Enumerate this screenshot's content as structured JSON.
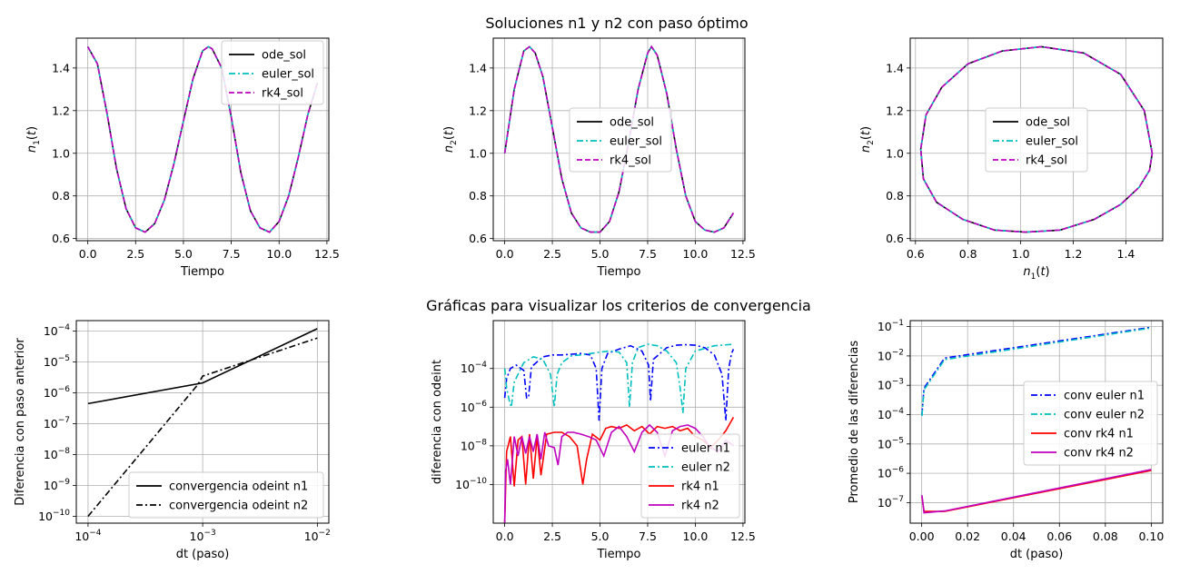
{
  "titles": {
    "top": "Soluciones n1 y n2 con paso óptimo",
    "bottom": "Gráficas para visualizar los criterios de convergencia"
  },
  "chart_data": [
    {
      "type": "line",
      "xlabel": "Tiempo",
      "ylabel": "n1(t)",
      "xlim": [
        -0.6,
        12.6
      ],
      "ylim": [
        0.59,
        1.54
      ],
      "xticks": [
        0,
        2.5,
        5,
        7.5,
        10,
        12.5
      ],
      "xtick_labels": [
        "0.0",
        "2.5",
        "5.0",
        "7.5",
        "10.0",
        "12.5"
      ],
      "yticks": [
        0.6,
        0.8,
        1.0,
        1.2,
        1.4
      ],
      "ytick_labels": [
        "0.6",
        "0.8",
        "1.0",
        "1.2",
        "1.4"
      ],
      "grid": true,
      "legend_position": "upper right",
      "x": [
        0,
        0.5,
        1,
        1.5,
        2,
        2.5,
        3,
        3.5,
        4,
        4.5,
        5,
        5.5,
        6,
        6.3,
        6.5,
        7,
        7.5,
        8,
        8.5,
        9,
        9.5,
        10,
        10.5,
        11,
        11.5,
        12
      ],
      "series": [
        {
          "name": "ode_sol",
          "color": "#000000",
          "dash": "solid",
          "values": [
            1.5,
            1.42,
            1.19,
            0.93,
            0.74,
            0.65,
            0.63,
            0.67,
            0.78,
            0.95,
            1.15,
            1.35,
            1.48,
            1.5,
            1.49,
            1.4,
            1.17,
            0.91,
            0.73,
            0.65,
            0.63,
            0.68,
            0.8,
            0.98,
            1.18,
            1.33
          ]
        },
        {
          "name": "euler_sol",
          "color": "#00bfbf",
          "dash": "dashdot",
          "values": [
            1.5,
            1.42,
            1.19,
            0.93,
            0.74,
            0.65,
            0.63,
            0.67,
            0.78,
            0.95,
            1.15,
            1.35,
            1.48,
            1.5,
            1.49,
            1.4,
            1.17,
            0.91,
            0.73,
            0.65,
            0.63,
            0.68,
            0.8,
            0.98,
            1.18,
            1.33
          ]
        },
        {
          "name": "rk4_sol",
          "color": "#bf00bf",
          "dash": "dashed",
          "values": [
            1.5,
            1.42,
            1.19,
            0.93,
            0.74,
            0.65,
            0.63,
            0.67,
            0.78,
            0.95,
            1.15,
            1.35,
            1.48,
            1.5,
            1.49,
            1.4,
            1.17,
            0.91,
            0.73,
            0.65,
            0.63,
            0.68,
            0.8,
            0.98,
            1.18,
            1.33
          ]
        }
      ]
    },
    {
      "type": "line",
      "xlabel": "Tiempo",
      "ylabel": "n2(t)",
      "xlim": [
        -0.6,
        12.6
      ],
      "ylim": [
        0.59,
        1.54
      ],
      "xticks": [
        0,
        2.5,
        5,
        7.5,
        10,
        12.5
      ],
      "xtick_labels": [
        "0.0",
        "2.5",
        "5.0",
        "7.5",
        "10.0",
        "12.5"
      ],
      "yticks": [
        0.6,
        0.8,
        1.0,
        1.2,
        1.4
      ],
      "ytick_labels": [
        "0.6",
        "0.8",
        "1.0",
        "1.2",
        "1.4"
      ],
      "grid": true,
      "legend_position": "center",
      "x": [
        0,
        0.5,
        1,
        1.3,
        1.6,
        2,
        2.5,
        3,
        3.5,
        4,
        4.5,
        5,
        5.5,
        6,
        6.5,
        7,
        7.5,
        7.7,
        8,
        8.5,
        9,
        9.5,
        10,
        10.5,
        11,
        11.5,
        12
      ],
      "series": [
        {
          "name": "ode_sol",
          "color": "#000000",
          "dash": "solid",
          "values": [
            1.0,
            1.3,
            1.48,
            1.5,
            1.47,
            1.36,
            1.12,
            0.88,
            0.72,
            0.65,
            0.63,
            0.63,
            0.68,
            0.82,
            1.05,
            1.3,
            1.47,
            1.5,
            1.46,
            1.28,
            1.02,
            0.8,
            0.68,
            0.64,
            0.63,
            0.65,
            0.72
          ]
        },
        {
          "name": "euler_sol",
          "color": "#00bfbf",
          "dash": "dashdot",
          "values": [
            1.0,
            1.3,
            1.48,
            1.5,
            1.47,
            1.36,
            1.12,
            0.88,
            0.72,
            0.65,
            0.63,
            0.63,
            0.68,
            0.82,
            1.05,
            1.3,
            1.47,
            1.5,
            1.46,
            1.28,
            1.02,
            0.8,
            0.68,
            0.64,
            0.63,
            0.65,
            0.72
          ]
        },
        {
          "name": "rk4_sol",
          "color": "#bf00bf",
          "dash": "dashed",
          "values": [
            1.0,
            1.3,
            1.48,
            1.5,
            1.47,
            1.36,
            1.12,
            0.88,
            0.72,
            0.65,
            0.63,
            0.63,
            0.68,
            0.82,
            1.05,
            1.3,
            1.47,
            1.5,
            1.46,
            1.28,
            1.02,
            0.8,
            0.68,
            0.64,
            0.63,
            0.65,
            0.72
          ]
        }
      ]
    },
    {
      "type": "line",
      "xlabel": "n1(t)",
      "ylabel": "n2(t)",
      "xlim": [
        0.58,
        1.54
      ],
      "ylim": [
        0.59,
        1.54
      ],
      "xticks": [
        0.6,
        0.8,
        1.0,
        1.2,
        1.4
      ],
      "xtick_labels": [
        "0.6",
        "0.8",
        "1.0",
        "1.2",
        "1.4"
      ],
      "yticks": [
        0.6,
        0.8,
        1.0,
        1.2,
        1.4
      ],
      "ytick_labels": [
        "0.6",
        "0.8",
        "1.0",
        "1.2",
        "1.4"
      ],
      "grid": true,
      "legend_position": "center",
      "x": [
        1.5,
        1.47,
        1.38,
        1.24,
        1.08,
        0.93,
        0.8,
        0.7,
        0.64,
        0.62,
        0.63,
        0.68,
        0.78,
        0.9,
        1.02,
        1.15,
        1.28,
        1.38,
        1.45,
        1.49,
        1.5
      ],
      "series": [
        {
          "name": "ode_sol",
          "color": "#000000",
          "dash": "solid",
          "values": [
            1.0,
            1.2,
            1.37,
            1.47,
            1.5,
            1.48,
            1.42,
            1.31,
            1.18,
            1.02,
            0.88,
            0.77,
            0.69,
            0.64,
            0.63,
            0.64,
            0.69,
            0.76,
            0.84,
            0.92,
            1.0
          ]
        },
        {
          "name": "euler_sol",
          "color": "#00bfbf",
          "dash": "dashdot",
          "values": [
            1.0,
            1.2,
            1.37,
            1.47,
            1.5,
            1.48,
            1.42,
            1.31,
            1.18,
            1.02,
            0.88,
            0.77,
            0.69,
            0.64,
            0.63,
            0.64,
            0.69,
            0.76,
            0.84,
            0.92,
            1.0
          ]
        },
        {
          "name": "rk4_sol",
          "color": "#bf00bf",
          "dash": "dashed",
          "values": [
            1.0,
            1.2,
            1.37,
            1.47,
            1.5,
            1.48,
            1.42,
            1.31,
            1.18,
            1.02,
            0.88,
            0.77,
            0.69,
            0.64,
            0.63,
            0.64,
            0.69,
            0.76,
            0.84,
            0.92,
            1.0
          ]
        }
      ]
    },
    {
      "type": "line",
      "xlabel": "dt (paso)",
      "ylabel": "Diferencia con paso anterior",
      "xscale": "log",
      "yscale": "log",
      "xlim": [
        7.9e-05,
        0.0126
      ],
      "ylim": [
        6e-11,
        0.00022
      ],
      "xticks": [
        0.0001,
        0.001,
        0.01
      ],
      "xtick_labels": [
        "10^-4",
        "10^-3",
        "10^-2"
      ],
      "yticks": [
        1e-10,
        1e-09,
        1e-08,
        1e-07,
        1e-06,
        1e-05,
        0.0001
      ],
      "ytick_labels": [
        "10^-10",
        "10^-9",
        "10^-8",
        "10^-7",
        "10^-6",
        "10^-5",
        "10^-4"
      ],
      "grid": true,
      "legend_position": "lower right",
      "series": [
        {
          "name": "convergencia odeint n1",
          "color": "#000000",
          "dash": "solid",
          "x": [
            0.0001,
            0.001,
            0.01
          ],
          "values": [
            4.5e-07,
            2.1e-06,
            0.00012
          ]
        },
        {
          "name": "convergencia odeint n2",
          "color": "#000000",
          "dash": "dashdot",
          "x": [
            0.0001,
            0.0009,
            0.001,
            0.01
          ],
          "values": [
            1e-10,
            1.8e-06,
            3.5e-06,
            6e-05
          ]
        }
      ]
    },
    {
      "type": "line",
      "xlabel": "Tiempo",
      "ylabel": "diferencia con odeint",
      "yscale": "log",
      "xlim": [
        -0.6,
        12.6
      ],
      "ylim": [
        1e-12,
        0.03
      ],
      "xticks": [
        0,
        2.5,
        5,
        7.5,
        10,
        12.5
      ],
      "xtick_labels": [
        "0.0",
        "2.5",
        "5.0",
        "7.5",
        "10.0",
        "12.5"
      ],
      "yticks": [
        1e-10,
        1e-08,
        1e-06,
        0.0001
      ],
      "ytick_labels": [
        "10^-10",
        "10^-8",
        "10^-6",
        "10^-4"
      ],
      "grid": true,
      "legend_position": "lower right",
      "series": [
        {
          "name": "euler n1",
          "color": "#0000ff",
          "dash": "dashdot",
          "x": [
            0,
            0.1,
            0.3,
            0.6,
            1.0,
            1.15,
            1.25,
            1.4,
            2.0,
            2.5,
            3.0,
            3.5,
            4.0,
            4.5,
            4.8,
            4.95,
            5.1,
            5.4,
            6.0,
            6.6,
            7.2,
            7.55,
            7.65,
            7.8,
            8.5,
            9.0,
            9.5,
            10.0,
            10.5,
            11.0,
            11.4,
            11.6,
            11.75,
            11.9,
            12.0
          ],
          "values": [
            3e-06,
            3e-05,
            0.0001,
            0.00015,
            8e-05,
            3e-06,
            3e-06,
            0.00012,
            0.0004,
            0.0005,
            0.0005,
            0.00055,
            0.0006,
            0.0005,
            0.0001,
            2e-07,
            0.0001,
            0.0006,
            0.001,
            0.0015,
            0.0008,
            0.00015,
            2e-06,
            0.0003,
            0.0012,
            0.0016,
            0.0017,
            0.0016,
            0.0012,
            0.0005,
            5e-05,
            2e-07,
            0.0001,
            0.0006,
            0.001
          ]
        },
        {
          "name": "euler n2",
          "color": "#00bfbf",
          "dash": "dashdot",
          "x": [
            0,
            0.1,
            0.25,
            0.35,
            0.5,
            1.0,
            1.5,
            2.0,
            2.4,
            2.6,
            2.75,
            3.0,
            3.5,
            4.0,
            5.0,
            5.5,
            6.0,
            6.4,
            6.55,
            6.7,
            7.0,
            7.5,
            8.0,
            8.5,
            9.0,
            9.2,
            9.35,
            9.5,
            10.0,
            11.0,
            12.0
          ],
          "values": [
            0.0001,
            1e-05,
            2e-06,
            1e-06,
            2e-05,
            0.0002,
            0.0004,
            0.0003,
            5e-05,
            1e-06,
            5e-05,
            0.0002,
            0.00045,
            0.0005,
            0.0007,
            0.0008,
            0.0007,
            0.0002,
            1e-06,
            0.0002,
            0.0012,
            0.0018,
            0.0015,
            0.0008,
            0.0002,
            1e-05,
            5e-07,
            0.0001,
            0.0008,
            0.0015,
            0.0018
          ]
        },
        {
          "name": "rk4 n1",
          "color": "#ff0000",
          "dash": "solid",
          "x": [
            0,
            0.1,
            0.3,
            0.5,
            0.7,
            0.9,
            1.1,
            1.3,
            1.5,
            1.7,
            1.9,
            2.2,
            2.6,
            3.0,
            3.4,
            3.8,
            4.1,
            4.3,
            4.6,
            5.0,
            5.3,
            5.6,
            6.0,
            6.4,
            6.8,
            7.2,
            7.6,
            8.0,
            8.4,
            8.8,
            9.2,
            9.6,
            10.0,
            10.4,
            10.8,
            11.2,
            11.6,
            12.0
          ],
          "values": [
            1e-12,
            5e-09,
            3e-08,
            8e-11,
            2e-08,
            3e-08,
            1e-10,
            4e-08,
            2e-10,
            3e-08,
            3e-10,
            4e-08,
            5e-08,
            5e-08,
            3e-08,
            1e-08,
            1e-10,
            2e-09,
            4e-08,
            2e-08,
            8e-08,
            1e-07,
            8e-08,
            1.2e-07,
            6e-08,
            1e-07,
            4e-08,
            1e-07,
            8e-08,
            1e-07,
            6e-08,
            8e-08,
            3e-08,
            2e-08,
            8e-09,
            2e-08,
            6e-08,
            3e-07
          ]
        },
        {
          "name": "rk4 n2",
          "color": "#bf00bf",
          "dash": "solid",
          "x": [
            0,
            0.05,
            0.15,
            0.3,
            0.5,
            0.7,
            0.9,
            1.1,
            1.3,
            1.5,
            1.7,
            1.9,
            2.1,
            2.3,
            2.6,
            2.8,
            3.0,
            3.3,
            3.6,
            4.0,
            4.4,
            4.8,
            5.2,
            5.6,
            6.0,
            6.4,
            6.8,
            7.2,
            7.6,
            8.0,
            8.4,
            8.8,
            9.2,
            9.6,
            10.0,
            10.4,
            10.8,
            11.2,
            11.6,
            12.0
          ],
          "values": [
            1e-12,
            5e-10,
            2e-09,
            1e-10,
            3e-08,
            3e-09,
            3e-08,
            4e-09,
            3e-08,
            5e-09,
            4e-08,
            2e-09,
            5e-08,
            1e-08,
            8e-09,
            1e-09,
            3e-08,
            5e-08,
            5e-08,
            4e-08,
            3e-08,
            2e-08,
            3e-09,
            5e-08,
            1e-07,
            3e-08,
            5e-09,
            5e-08,
            1.2e-07,
            5e-08,
            3e-09,
            6e-08,
            1e-07,
            1.2e-07,
            8e-08,
            3e-08,
            8e-09,
            5e-09,
            2e-08,
            1e-08
          ]
        }
      ]
    },
    {
      "type": "line",
      "xlabel": "dt (paso)",
      "ylabel": "Promedio de las diferencias",
      "yscale": "log",
      "xlim": [
        -0.005,
        0.105
      ],
      "ylim": [
        2e-08,
        0.16
      ],
      "xticks": [
        0.0,
        0.02,
        0.04,
        0.06,
        0.08,
        0.1
      ],
      "xtick_labels": [
        "0.00",
        "0.02",
        "0.04",
        "0.06",
        "0.08",
        "0.10"
      ],
      "yticks": [
        1e-07,
        1e-06,
        1e-05,
        0.0001,
        0.001,
        0.01,
        0.1
      ],
      "ytick_labels": [
        "10^-7",
        "10^-6",
        "10^-5",
        "10^-4",
        "10^-3",
        "10^-2",
        "10^-1"
      ],
      "grid": true,
      "legend_position": "center right",
      "series": [
        {
          "name": "conv euler n1",
          "color": "#0000ff",
          "dash": "dashdot",
          "x": [
            0.0001,
            0.001,
            0.01,
            0.1
          ],
          "values": [
            0.0001,
            0.0008,
            0.0085,
            0.095
          ]
        },
        {
          "name": "conv euler n2",
          "color": "#00bfbf",
          "dash": "dashdot",
          "x": [
            0.0001,
            0.001,
            0.01,
            0.1
          ],
          "values": [
            9e-05,
            0.0007,
            0.0075,
            0.09
          ]
        },
        {
          "name": "conv rk4 n1",
          "color": "#ff0000",
          "dash": "solid",
          "x": [
            0.0001,
            0.001,
            0.01,
            0.1
          ],
          "values": [
            1.6e-07,
            5e-08,
            5e-08,
            1.25e-06
          ]
        },
        {
          "name": "conv rk4 n2",
          "color": "#bf00bf",
          "dash": "solid",
          "x": [
            0.0001,
            0.001,
            0.01,
            0.1
          ],
          "values": [
            1.8e-07,
            4.5e-08,
            5.2e-08,
            1.35e-06
          ]
        }
      ]
    }
  ]
}
